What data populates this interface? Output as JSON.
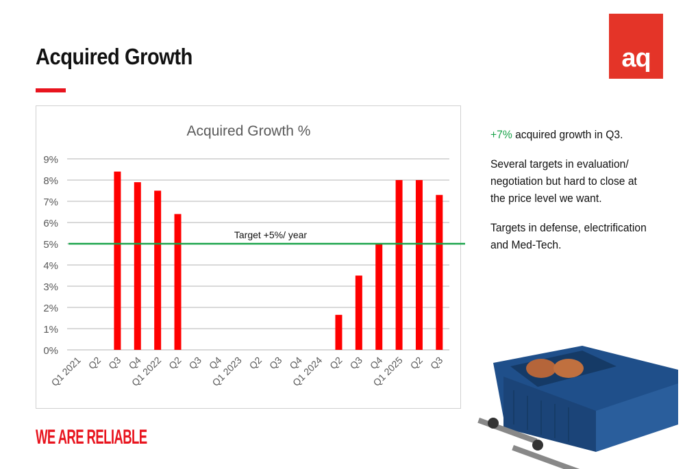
{
  "slide": {
    "title": "Acquired Growth",
    "logo_text": "aq",
    "slogan": "WE ARE RELIABLE"
  },
  "notes": {
    "highlight": "+7%",
    "line1_rest": " acquired growth in Q3.",
    "line2": "Several targets in evaluation/ negotiation but hard to close at the price level we want.",
    "line3": "Targets in defense, electrification and Med-Tech."
  },
  "colors": {
    "bar": "#ff0000",
    "target": "#1aa34a",
    "accent": "#e8141e"
  },
  "chart_data": {
    "type": "bar",
    "title": "Acquired Growth %",
    "categories": [
      "Q1 2021",
      "Q2",
      "Q3",
      "Q4",
      "Q1 2022",
      "Q2",
      "Q3",
      "Q4",
      "Q1 2023",
      "Q2",
      "Q3",
      "Q4",
      "Q1 2024",
      "Q2",
      "Q3",
      "Q4",
      "Q1 2025",
      "Q2",
      "Q3"
    ],
    "values": [
      0,
      0,
      8.4,
      7.9,
      7.5,
      6.4,
      0,
      0,
      0,
      0,
      0,
      0,
      0,
      1.65,
      3.5,
      5.0,
      8.0,
      8.0,
      7.3
    ],
    "yticks": [
      "0%",
      "1%",
      "2%",
      "3%",
      "4%",
      "5%",
      "6%",
      "7%",
      "8%",
      "9%"
    ],
    "ylim": [
      0,
      9
    ],
    "target": {
      "value": 5,
      "label": "Target +5%/ year"
    },
    "xlabel": "",
    "ylabel": "",
    "grid": true
  }
}
